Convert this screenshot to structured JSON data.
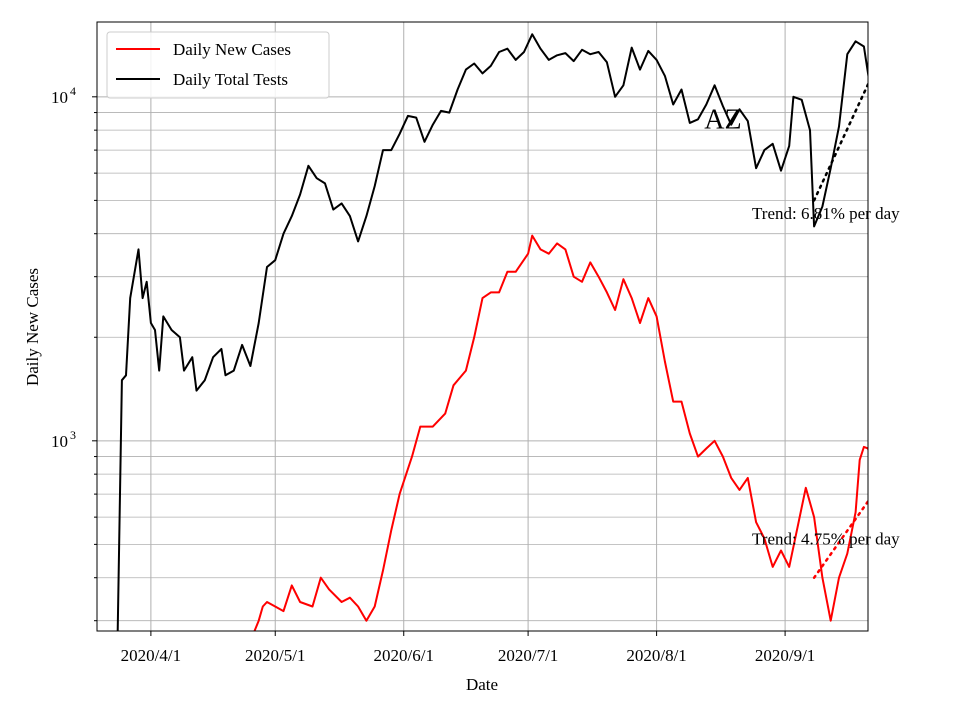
{
  "chart_data": {
    "type": "line",
    "xlabel": "Date",
    "ylabel": "Daily New Cases",
    "yscale": "log",
    "ylim": [
      280,
      16500
    ],
    "xlim": [
      "2020-03-19",
      "2020-09-21"
    ],
    "xticks": [
      {
        "date": "2020-04-01",
        "label": "2020/4/1"
      },
      {
        "date": "2020-05-01",
        "label": "2020/5/1"
      },
      {
        "date": "2020-06-01",
        "label": "2020/6/1"
      },
      {
        "date": "2020-07-01",
        "label": "2020/7/1"
      },
      {
        "date": "2020-08-01",
        "label": "2020/8/1"
      },
      {
        "date": "2020-09-01",
        "label": "2020/9/1"
      }
    ],
    "ytick_labels": [
      {
        "value": 1000,
        "base": "10",
        "exp": "3"
      },
      {
        "value": 10000,
        "base": "10",
        "exp": "4"
      }
    ],
    "grid": true,
    "legend_placement": "upper-left",
    "series": [
      {
        "name": "Daily New Cases",
        "color": "#ff0000",
        "points": [
          [
            "2020-04-26",
            280
          ],
          [
            "2020-04-27",
            300
          ],
          [
            "2020-04-28",
            330
          ],
          [
            "2020-04-29",
            340
          ],
          [
            "2020-05-01",
            330
          ],
          [
            "2020-05-03",
            320
          ],
          [
            "2020-05-05",
            380
          ],
          [
            "2020-05-07",
            340
          ],
          [
            "2020-05-10",
            330
          ],
          [
            "2020-05-12",
            400
          ],
          [
            "2020-05-14",
            370
          ],
          [
            "2020-05-17",
            340
          ],
          [
            "2020-05-19",
            350
          ],
          [
            "2020-05-21",
            330
          ],
          [
            "2020-05-23",
            300
          ],
          [
            "2020-05-25",
            330
          ],
          [
            "2020-05-27",
            420
          ],
          [
            "2020-05-29",
            550
          ],
          [
            "2020-05-31",
            700
          ],
          [
            "2020-06-03",
            900
          ],
          [
            "2020-06-05",
            1100
          ],
          [
            "2020-06-08",
            1100
          ],
          [
            "2020-06-11",
            1200
          ],
          [
            "2020-06-13",
            1450
          ],
          [
            "2020-06-16",
            1600
          ],
          [
            "2020-06-18",
            2000
          ],
          [
            "2020-06-20",
            2600
          ],
          [
            "2020-06-22",
            2700
          ],
          [
            "2020-06-24",
            2700
          ],
          [
            "2020-06-26",
            3100
          ],
          [
            "2020-06-28",
            3100
          ],
          [
            "2020-07-01",
            3500
          ],
          [
            "2020-07-02",
            3950
          ],
          [
            "2020-07-04",
            3600
          ],
          [
            "2020-07-06",
            3500
          ],
          [
            "2020-07-08",
            3750
          ],
          [
            "2020-07-10",
            3600
          ],
          [
            "2020-07-12",
            3000
          ],
          [
            "2020-07-14",
            2900
          ],
          [
            "2020-07-16",
            3300
          ],
          [
            "2020-07-18",
            3000
          ],
          [
            "2020-07-20",
            2700
          ],
          [
            "2020-07-22",
            2400
          ],
          [
            "2020-07-24",
            2950
          ],
          [
            "2020-07-26",
            2600
          ],
          [
            "2020-07-28",
            2200
          ],
          [
            "2020-07-30",
            2600
          ],
          [
            "2020-08-01",
            2300
          ],
          [
            "2020-08-03",
            1700
          ],
          [
            "2020-08-05",
            1300
          ],
          [
            "2020-08-07",
            1300
          ],
          [
            "2020-08-09",
            1050
          ],
          [
            "2020-08-11",
            900
          ],
          [
            "2020-08-13",
            950
          ],
          [
            "2020-08-15",
            1000
          ],
          [
            "2020-08-17",
            900
          ],
          [
            "2020-08-19",
            780
          ],
          [
            "2020-08-21",
            720
          ],
          [
            "2020-08-23",
            780
          ],
          [
            "2020-08-25",
            580
          ],
          [
            "2020-08-27",
            520
          ],
          [
            "2020-08-29",
            430
          ],
          [
            "2020-08-31",
            480
          ],
          [
            "2020-09-02",
            430
          ],
          [
            "2020-09-04",
            560
          ],
          [
            "2020-09-06",
            730
          ],
          [
            "2020-09-08",
            600
          ],
          [
            "2020-09-10",
            400
          ],
          [
            "2020-09-12",
            300
          ],
          [
            "2020-09-14",
            400
          ],
          [
            "2020-09-16",
            470
          ],
          [
            "2020-09-18",
            620
          ],
          [
            "2020-09-19",
            880
          ],
          [
            "2020-09-20",
            960
          ],
          [
            "2020-09-21",
            950
          ],
          [
            "2020-09-22",
            860
          ],
          [
            "2020-09-23",
            650
          ],
          [
            "2020-09-24",
            460
          ],
          [
            "2020-09-25",
            420
          ]
        ]
      },
      {
        "name": "Daily Total Tests",
        "color": "#000000",
        "points": [
          [
            "2020-03-24",
            280
          ],
          [
            "2020-03-25",
            1500
          ],
          [
            "2020-03-26",
            1550
          ],
          [
            "2020-03-27",
            2600
          ],
          [
            "2020-03-29",
            3600
          ],
          [
            "2020-03-30",
            2600
          ],
          [
            "2020-03-31",
            2900
          ],
          [
            "2020-04-01",
            2200
          ],
          [
            "2020-04-02",
            2100
          ],
          [
            "2020-04-03",
            1600
          ],
          [
            "2020-04-04",
            2300
          ],
          [
            "2020-04-06",
            2100
          ],
          [
            "2020-04-08",
            2000
          ],
          [
            "2020-04-09",
            1600
          ],
          [
            "2020-04-11",
            1750
          ],
          [
            "2020-04-12",
            1400
          ],
          [
            "2020-04-14",
            1500
          ],
          [
            "2020-04-16",
            1750
          ],
          [
            "2020-04-18",
            1850
          ],
          [
            "2020-04-19",
            1550
          ],
          [
            "2020-04-21",
            1600
          ],
          [
            "2020-04-23",
            1900
          ],
          [
            "2020-04-25",
            1650
          ],
          [
            "2020-04-27",
            2200
          ],
          [
            "2020-04-29",
            3200
          ],
          [
            "2020-05-01",
            3350
          ],
          [
            "2020-05-03",
            4000
          ],
          [
            "2020-05-05",
            4500
          ],
          [
            "2020-05-07",
            5200
          ],
          [
            "2020-05-09",
            6300
          ],
          [
            "2020-05-11",
            5800
          ],
          [
            "2020-05-13",
            5600
          ],
          [
            "2020-05-15",
            4700
          ],
          [
            "2020-05-17",
            4900
          ],
          [
            "2020-05-19",
            4500
          ],
          [
            "2020-05-21",
            3800
          ],
          [
            "2020-05-23",
            4500
          ],
          [
            "2020-05-25",
            5500
          ],
          [
            "2020-05-27",
            7000
          ],
          [
            "2020-05-29",
            7000
          ],
          [
            "2020-05-31",
            7800
          ],
          [
            "2020-06-02",
            8800
          ],
          [
            "2020-06-04",
            8700
          ],
          [
            "2020-06-06",
            7400
          ],
          [
            "2020-06-08",
            8300
          ],
          [
            "2020-06-10",
            9100
          ],
          [
            "2020-06-12",
            9000
          ],
          [
            "2020-06-14",
            10500
          ],
          [
            "2020-06-16",
            12000
          ],
          [
            "2020-06-18",
            12500
          ],
          [
            "2020-06-20",
            11700
          ],
          [
            "2020-06-22",
            12300
          ],
          [
            "2020-06-24",
            13500
          ],
          [
            "2020-06-26",
            13800
          ],
          [
            "2020-06-28",
            12800
          ],
          [
            "2020-06-30",
            13500
          ],
          [
            "2020-07-02",
            15200
          ],
          [
            "2020-07-04",
            13800
          ],
          [
            "2020-07-06",
            12800
          ],
          [
            "2020-07-08",
            13200
          ],
          [
            "2020-07-10",
            13400
          ],
          [
            "2020-07-12",
            12700
          ],
          [
            "2020-07-14",
            13700
          ],
          [
            "2020-07-16",
            13300
          ],
          [
            "2020-07-18",
            13500
          ],
          [
            "2020-07-20",
            12600
          ],
          [
            "2020-07-22",
            10000
          ],
          [
            "2020-07-24",
            10800
          ],
          [
            "2020-07-26",
            13900
          ],
          [
            "2020-07-28",
            12000
          ],
          [
            "2020-07-30",
            13600
          ],
          [
            "2020-08-01",
            12800
          ],
          [
            "2020-08-03",
            11500
          ],
          [
            "2020-08-05",
            9500
          ],
          [
            "2020-08-07",
            10500
          ],
          [
            "2020-08-09",
            8400
          ],
          [
            "2020-08-11",
            8600
          ],
          [
            "2020-08-13",
            9500
          ],
          [
            "2020-08-15",
            10800
          ],
          [
            "2020-08-17",
            9400
          ],
          [
            "2020-08-19",
            8300
          ],
          [
            "2020-08-21",
            9200
          ],
          [
            "2020-08-23",
            8500
          ],
          [
            "2020-08-25",
            6200
          ],
          [
            "2020-08-27",
            7000
          ],
          [
            "2020-08-29",
            7300
          ],
          [
            "2020-08-31",
            6100
          ],
          [
            "2020-09-02",
            7200
          ],
          [
            "2020-09-03",
            10000
          ],
          [
            "2020-09-05",
            9800
          ],
          [
            "2020-09-07",
            8000
          ],
          [
            "2020-09-08",
            4200
          ],
          [
            "2020-09-10",
            4800
          ],
          [
            "2020-09-12",
            6200
          ],
          [
            "2020-09-14",
            8200
          ],
          [
            "2020-09-16",
            13300
          ],
          [
            "2020-09-18",
            14500
          ],
          [
            "2020-09-20",
            14000
          ],
          [
            "2020-09-22",
            9800
          ],
          [
            "2020-09-24",
            9500
          ],
          [
            "2020-09-25",
            9300
          ]
        ]
      }
    ],
    "trendlines": [
      {
        "series": "Daily Total Tests",
        "color": "#000000",
        "label": "Trend: 6.81% per day",
        "start": [
          "2020-09-08",
          5000
        ],
        "end": [
          "2020-09-25",
          13800
        ]
      },
      {
        "series": "Daily New Cases",
        "color": "#ff0000",
        "label": "Trend: 4.75% per day",
        "start": [
          "2020-09-08",
          400
        ],
        "end": [
          "2020-09-25",
          780
        ]
      }
    ],
    "annotations": [
      {
        "text": "AZ",
        "x": "2020-08-17",
        "y": 8600
      }
    ]
  }
}
